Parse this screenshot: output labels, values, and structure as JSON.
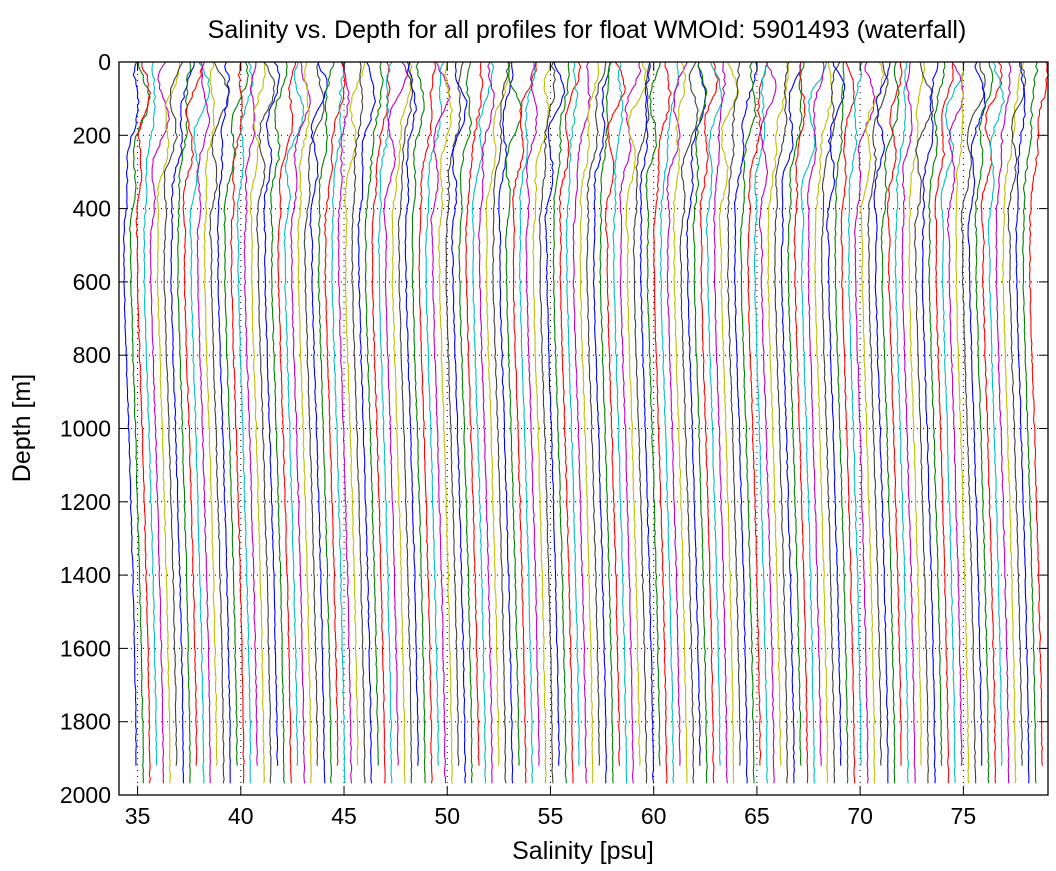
{
  "chart_data": {
    "type": "line",
    "title": "Salinity vs. Depth for all profiles for float WMOId: 5901493 (waterfall)",
    "xlabel": "Salinity [psu]",
    "ylabel": "Depth [m]",
    "xlim": [
      34.1,
      79.1
    ],
    "ylim": [
      0,
      2000
    ],
    "y_reversed": true,
    "grid": "dotted",
    "xticks": [
      35,
      40,
      45,
      50,
      55,
      60,
      65,
      70,
      75
    ],
    "yticks": [
      0,
      200,
      400,
      600,
      800,
      1000,
      1200,
      1400,
      1600,
      1800,
      2000
    ],
    "xtick_labels": [
      "35",
      "40",
      "45",
      "50",
      "55",
      "60",
      "65",
      "70",
      "75"
    ],
    "ytick_labels": [
      "0",
      "200",
      "400",
      "600",
      "800",
      "1000",
      "1200",
      "1400",
      "1600",
      "1800",
      "2000"
    ],
    "series_colors": [
      "#0000ff",
      "#008000",
      "#ff0000",
      "#00bfbf",
      "#bf00bf",
      "#bfbf00",
      "#404040"
    ],
    "waterfall": {
      "profile_count": 136,
      "offset_per_profile": 0.325,
      "first_profile_surface_salinity": 34.85,
      "first_profile_deep_salinity": 34.95,
      "profile_max_depth": 1975,
      "profile_shape": [
        {
          "depth": 0,
          "anomaly": 0.0
        },
        {
          "depth": 100,
          "anomaly": -0.05
        },
        {
          "depth": 200,
          "anomaly": -0.25
        },
        {
          "depth": 300,
          "anomaly": -0.45
        },
        {
          "depth": 450,
          "anomaly": -0.6
        },
        {
          "depth": 600,
          "anomaly": -0.6
        },
        {
          "depth": 800,
          "anomaly": -0.5
        },
        {
          "depth": 1000,
          "anomaly": -0.38
        },
        {
          "depth": 1200,
          "anomaly": -0.28
        },
        {
          "depth": 1400,
          "anomaly": -0.18
        },
        {
          "depth": 1600,
          "anomaly": -0.1
        },
        {
          "depth": 1800,
          "anomaly": -0.03
        },
        {
          "depth": 1975,
          "anomaly": 0.0
        }
      ]
    }
  }
}
